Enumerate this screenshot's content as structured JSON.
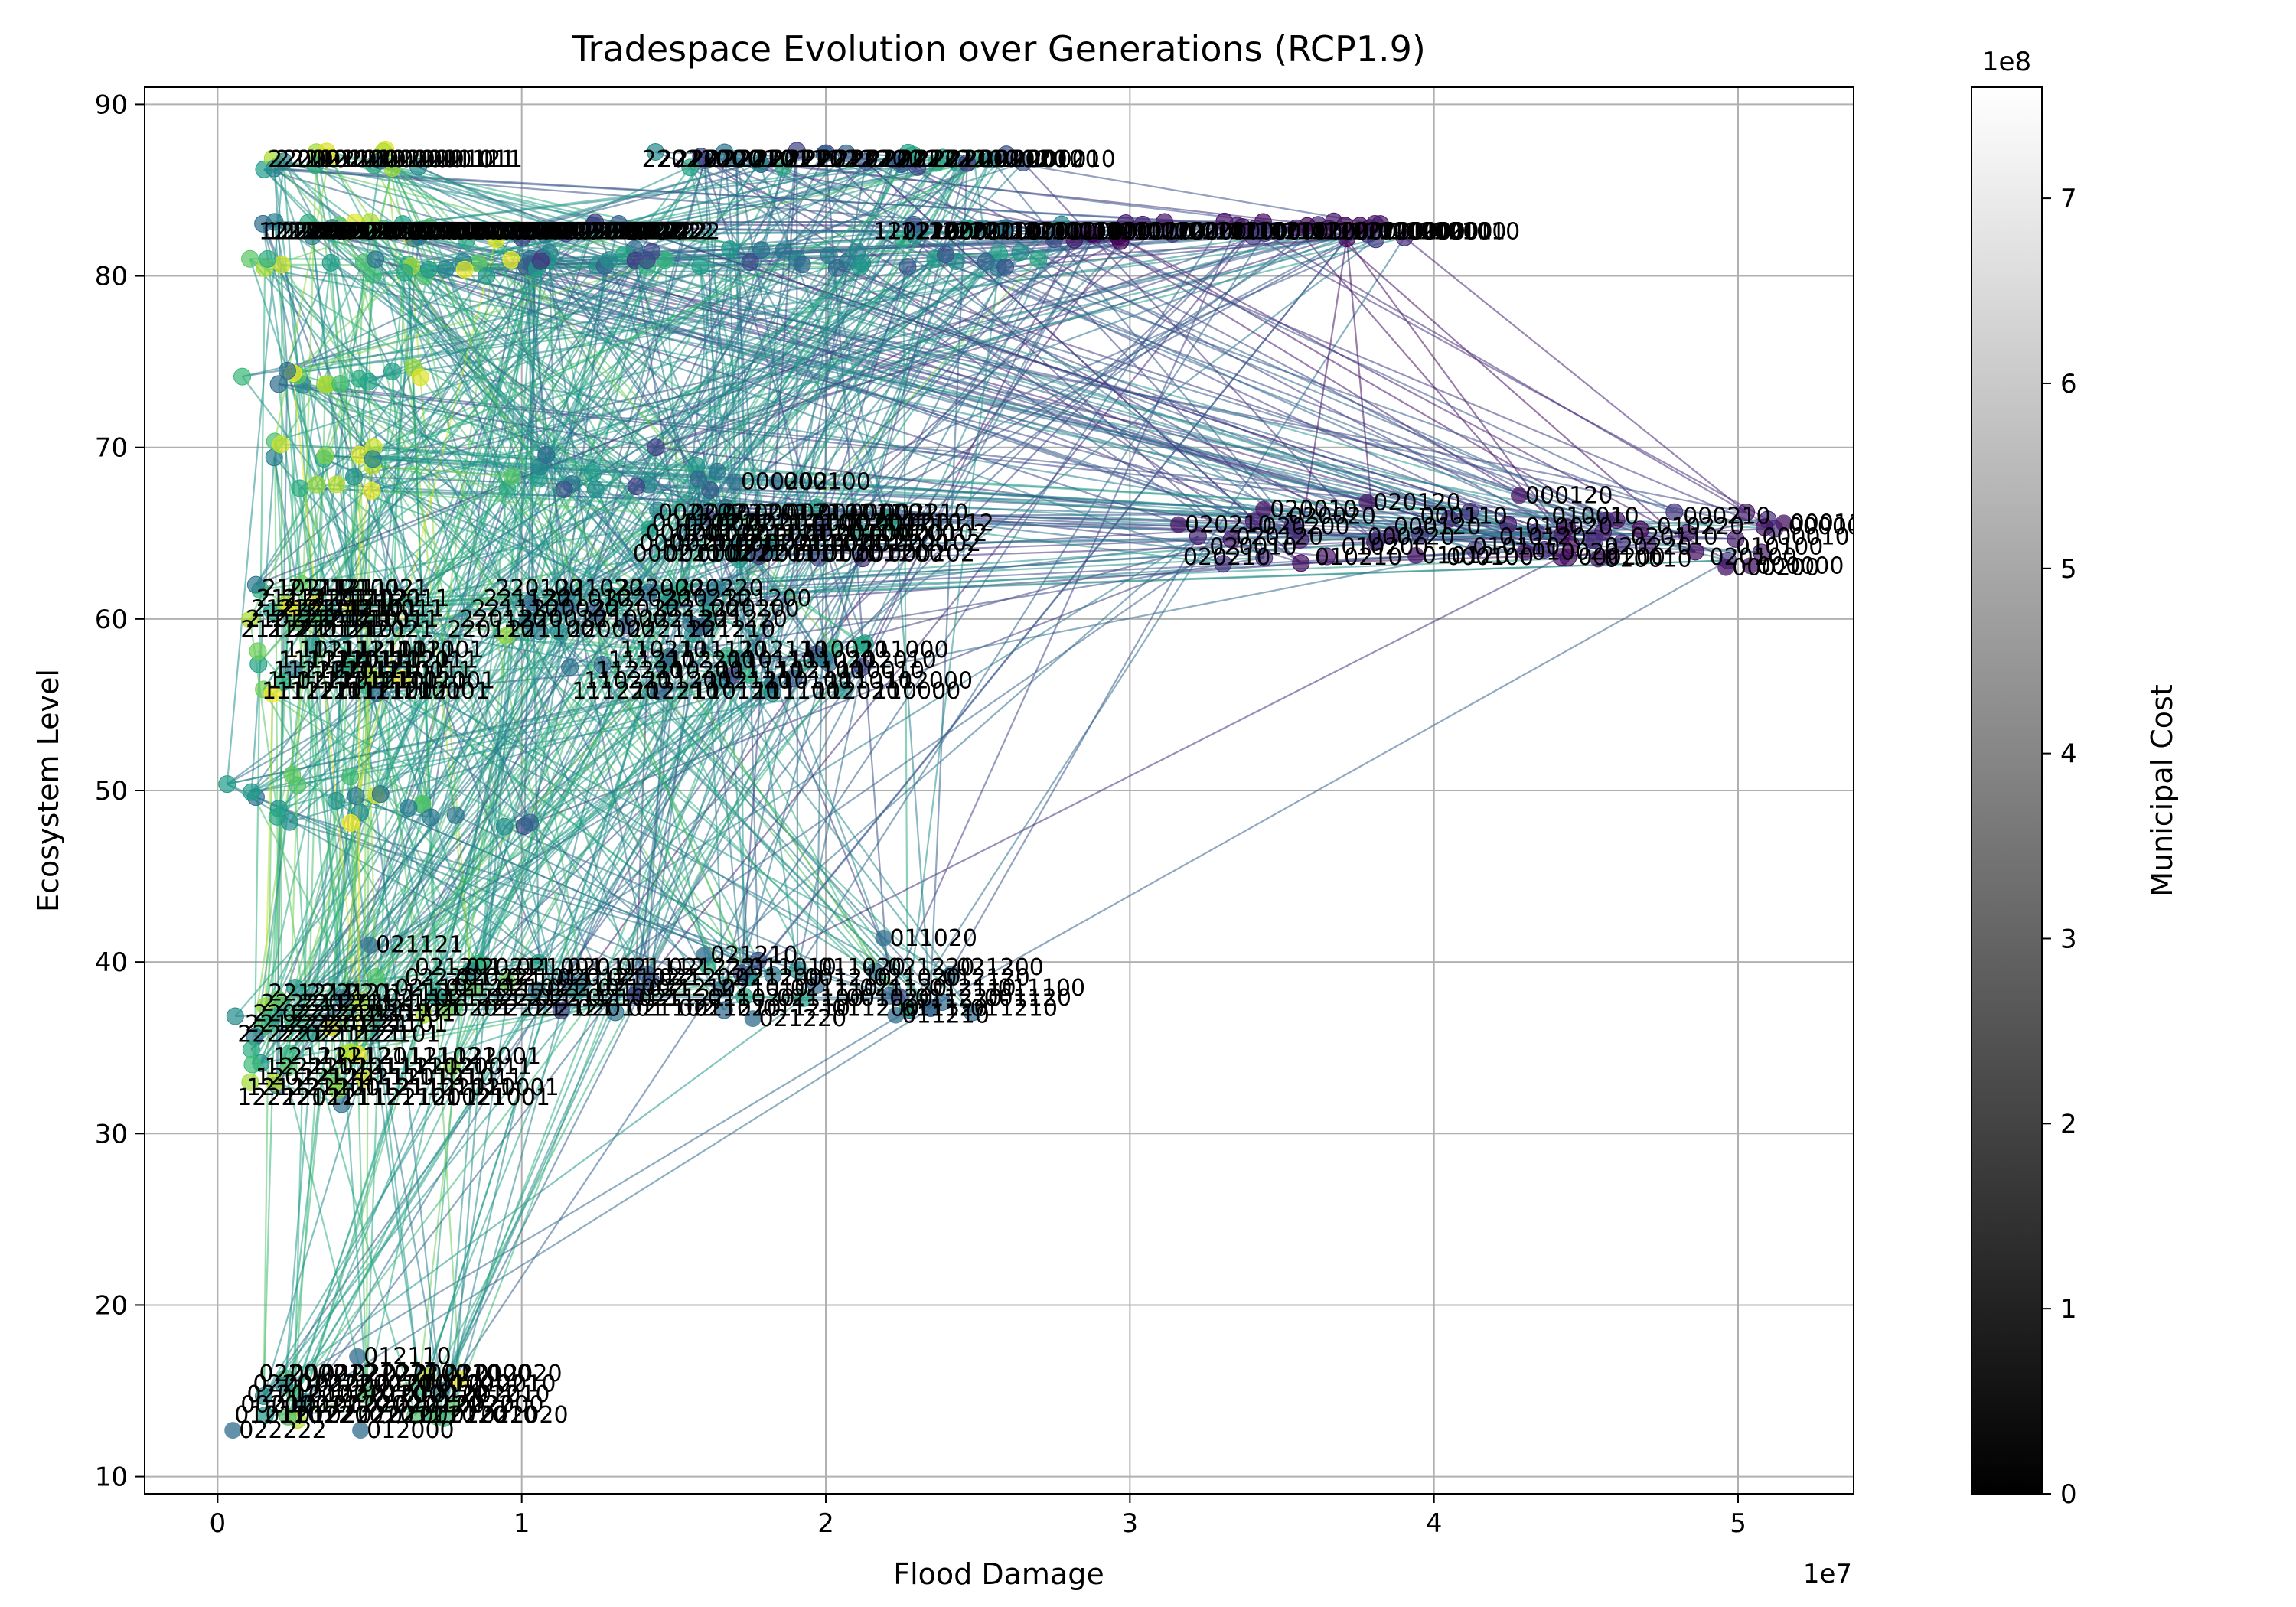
{
  "chart_data": {
    "type": "scatter",
    "title": "Tradespace Evolution over Generations (RCP1.9)",
    "xlabel": "Flood Damage",
    "ylabel": "Ecosystem Level",
    "x_offset_label": "1e7",
    "xlim": [
      -2400000,
      53800000
    ],
    "ylim": [
      9,
      91
    ],
    "x_ticks": [
      0,
      10000000,
      20000000,
      30000000,
      40000000,
      50000000
    ],
    "x_tick_labels": [
      "0",
      "1",
      "2",
      "3",
      "4",
      "5"
    ],
    "y_ticks": [
      10,
      20,
      30,
      40,
      50,
      60,
      70,
      80,
      90
    ],
    "y_tick_labels": [
      "10",
      "20",
      "30",
      "40",
      "50",
      "60",
      "70",
      "80",
      "90"
    ],
    "grid": true,
    "colormap": "viridis",
    "line_color_meaning": "generation",
    "colorbar": {
      "label": "Municipal Cost",
      "offset_label": "1e8",
      "cmap": "gray",
      "range": [
        0,
        760000000
      ],
      "ticks": [
        0,
        100000000,
        200000000,
        300000000,
        400000000,
        500000000,
        600000000,
        700000000
      ],
      "tick_labels": [
        "0",
        "1",
        "2",
        "3",
        "4",
        "5",
        "6",
        "7"
      ]
    },
    "clusters": [
      {
        "x": [
          1500000,
          7000000
        ],
        "y": [
          86.8,
          86.8
        ],
        "labels": [
          "220021",
          "221001",
          "221011",
          "221021",
          "220111",
          "220121",
          "221101",
          "221111",
          "221121",
          "220101",
          "220001",
          "221121",
          "220011",
          "221111",
          "221011",
          "221021",
          "221001",
          "220021",
          "220101",
          "220011",
          "221111",
          "221101",
          "221121",
          "221011"
        ]
      },
      {
        "x": [
          13800000,
          26500000
        ],
        "y": [
          86.8,
          86.8
        ],
        "labels": [
          "220210",
          "221200",
          "220200",
          "221201",
          "221210",
          "220201",
          "221211",
          "220211",
          "221202",
          "221212",
          "220212",
          "221220",
          "220220",
          "221221",
          "220221",
          "220222",
          "221222",
          "220110",
          "221110",
          "220120",
          "200112",
          "200110",
          "220010",
          "200120",
          "200010"
        ]
      },
      {
        "x": [
          1200000,
          13500000
        ],
        "y": [
          82.6,
          82.6
        ],
        "labels": [
          "121222",
          "122212",
          "121212",
          "122202",
          "121202",
          "122222",
          "120212",
          "120202",
          "122121",
          "121121",
          "122111",
          "121111",
          "120121",
          "122101",
          "121101",
          "120111",
          "120101",
          "122021",
          "121021",
          "120021",
          "122011",
          "121011",
          "120011",
          "122001",
          "121001",
          "120001",
          "120222",
          "121022",
          "122022",
          "120022",
          "121012",
          "122012",
          "120012",
          "121002",
          "122002",
          "120002",
          "122222",
          "120212",
          "121212",
          "122202",
          "121202",
          "120202",
          "122122",
          "120122",
          "121122",
          "122112",
          "121112",
          "120112",
          "122102",
          "121102",
          "120102",
          "122012",
          "121012",
          "120002",
          "122212",
          "121222",
          "122202",
          "121212",
          "120212",
          "122222"
        ]
      },
      {
        "x": [
          21400000,
          39800000
        ],
        "y": [
          82.6,
          82.6
        ],
        "labels": [
          "120210",
          "122200",
          "121200",
          "120200",
          "122210",
          "121210",
          "120110",
          "122100",
          "121100",
          "120100",
          "122110",
          "121110",
          "100110",
          "102100",
          "101100",
          "100100",
          "102110",
          "101110",
          "100210",
          "102200",
          "101200",
          "100200",
          "102210",
          "101210",
          "110100",
          "112100",
          "111100",
          "110110",
          "112110",
          "111110",
          "110200",
          "112200",
          "111200",
          "110210",
          "112210",
          "111210",
          "100010",
          "100000",
          "102000",
          "101000",
          "102010",
          "101010"
        ]
      },
      {
        "x": [
          1000000,
          9000000
        ],
        "y": [
          80.4,
          80.4
        ],
        "labels": []
      },
      {
        "x": [
          9000000,
          28500000
        ],
        "y": [
          81.0,
          81.0
        ],
        "labels": []
      },
      {
        "x": [
          700000,
          7200000
        ],
        "y": [
          74.2,
          74.2
        ],
        "labels": []
      },
      {
        "x": [
          1500000,
          5500000
        ],
        "y": [
          68.8,
          68.8
        ],
        "labels": []
      },
      {
        "x": [
          9500000,
          16500000
        ],
        "y": [
          68.8,
          68.8
        ],
        "labels": []
      },
      {
        "x": [
          13500000,
          22500000
        ],
        "y": [
          65.0,
          65.0
        ],
        "labels": [
          "000220",
          "000210",
          "000202",
          "001202",
          "002202",
          "001102",
          "002102",
          "000102",
          "001221",
          "002221",
          "000221",
          "001211",
          "002211",
          "000211",
          "001201",
          "002201",
          "000201",
          "001121",
          "002121",
          "000121",
          "001111",
          "002111",
          "000111",
          "001101",
          "002101",
          "000101",
          "001021",
          "002021",
          "000021",
          "001011",
          "002011",
          "000011",
          "001001",
          "002001",
          "000001",
          "001200",
          "002200",
          "000200",
          "001210",
          "002210",
          "000202",
          "002102",
          "000102",
          "000112"
        ]
      },
      {
        "x": [
          31600000,
          51500000
        ],
        "y": [
          64.8,
          64.8
        ],
        "labels": [
          "020210",
          "020010",
          "020120",
          "020200",
          "020020",
          "010210",
          "010200",
          "000220",
          "000120",
          "000110",
          "000100",
          "010110",
          "010120",
          "010020",
          "010010",
          "000200",
          "020220",
          "020110",
          "010220",
          "000210",
          "020100",
          "010100",
          "000010",
          "000000"
        ]
      },
      {
        "x": [
          600000,
          4600000
        ],
        "y": [
          60.6,
          60.6
        ],
        "labels": [
          "211221",
          "210221",
          "212221",
          "211211",
          "210211",
          "212211",
          "211201",
          "210201",
          "212201",
          "211121",
          "210121",
          "212121",
          "211111",
          "210111",
          "212111",
          "211101",
          "210101",
          "212101",
          "211021",
          "210021",
          "212021",
          "211011",
          "210011",
          "212011"
        ]
      },
      {
        "x": [
          7400000,
          16500000
        ],
        "y": [
          60.6,
          60.6
        ],
        "labels": [
          "220110",
          "220120",
          "221110",
          "221120",
          "220100",
          "221100",
          "220010",
          "220020",
          "221010",
          "221020",
          "220000",
          "221000",
          "222010",
          "222020",
          "222000",
          "222110",
          "222120",
          "222100",
          "220210",
          "220220",
          "221210",
          "221220",
          "220200",
          "221200"
        ]
      },
      {
        "x": [
          1300000,
          6100000
        ],
        "y": [
          57.0,
          57.0
        ],
        "labels": [
          "111221",
          "110221",
          "112221",
          "111211",
          "110211",
          "112211",
          "111201",
          "110201",
          "112201",
          "111121",
          "110121",
          "112121",
          "111111",
          "110111",
          "112111",
          "111101",
          "110101",
          "112101",
          "111021",
          "110021",
          "112021",
          "111011",
          "110011",
          "112011",
          "111001",
          "110001",
          "112001"
        ]
      },
      {
        "x": [
          11500000,
          21800000
        ],
        "y": [
          57.0,
          57.0
        ],
        "labels": [
          "111220",
          "110220",
          "112220",
          "111210",
          "110210",
          "112210",
          "111200",
          "110200",
          "112200",
          "111120",
          "110120",
          "112120",
          "111110",
          "110110",
          "112110",
          "111100",
          "110100",
          "112100",
          "111020",
          "110020",
          "112020",
          "111010",
          "110010",
          "112010",
          "111000",
          "110000",
          "112000"
        ]
      },
      {
        "x": [
          300000,
          10500000
        ],
        "y": [
          49.5,
          49.5
        ],
        "labels": []
      },
      {
        "x": [
          5000000,
          15000000
        ],
        "y": [
          38.5,
          38.5
        ],
        "labels": [
          "021121",
          "021111",
          "021101",
          "022201",
          "021201",
          "020201",
          "021221",
          "021211",
          "020221",
          "020211",
          "022221",
          "022211",
          "021021",
          "021011",
          "021001",
          "022121",
          "022111",
          "022101",
          "020121",
          "020111",
          "020101",
          "021012",
          "021002",
          "021022",
          "021112",
          "021102",
          "021122",
          "021212",
          "021202",
          "021222",
          "021102"
        ]
      },
      {
        "x": [
          15500000,
          25500000
        ],
        "y": [
          38.5,
          38.5
        ],
        "labels": [
          "021210",
          "011020",
          "021010",
          "021200",
          "011010",
          "011210",
          "021100",
          "021110",
          "001210",
          "011020",
          "011200",
          "001020",
          "021120",
          "021020",
          "021220",
          "011120",
          "011220",
          "012110",
          "012120",
          "021200",
          "011210",
          "001120",
          "011100"
        ]
      },
      {
        "x": [
          500000,
          4800000
        ],
        "y": [
          37.0,
          37.0
        ],
        "labels": [
          "222221",
          "221221",
          "220221",
          "222211",
          "221211",
          "220211",
          "222201",
          "221201",
          "220201",
          "222121",
          "221121",
          "220121",
          "222111",
          "221111",
          "220111",
          "222101",
          "221101",
          "220101"
        ]
      },
      {
        "x": [
          500000,
          8200000
        ],
        "y": [
          33.3,
          33.3
        ],
        "labels": [
          "122221",
          "121221",
          "120221",
          "122211",
          "121211",
          "120211",
          "122201",
          "121201",
          "120201",
          "122121",
          "121121",
          "120121",
          "122111",
          "121111",
          "120111",
          "122101",
          "121101",
          "120101",
          "122021",
          "121021",
          "120021",
          "122011",
          "121011",
          "120011",
          "122001",
          "121001",
          "120001"
        ]
      },
      {
        "x": [
          400000,
          8500000
        ],
        "y": [
          14.8,
          14.8
        ],
        "labels": [
          "012110",
          "002002",
          "022022",
          "022012",
          "022002",
          "012022",
          "012012",
          "012002",
          "002022",
          "002012",
          "012200",
          "012120",
          "012210",
          "022200",
          "022210",
          "022220",
          "002200",
          "002210",
          "002220",
          "022222",
          "022212",
          "022202",
          "012000",
          "012100",
          "022100",
          "022110",
          "022120",
          "012220",
          "002100",
          "002110",
          "002120",
          "012222",
          "012212",
          "012202",
          "022000",
          "022010",
          "002000",
          "002010",
          "012010",
          "012020",
          "022020"
        ]
      }
    ],
    "axis_label_points": [
      {
        "x": 5000000,
        "y": 41.0,
        "label": "021121"
      },
      {
        "x": 21900000,
        "y": 41.4,
        "label": "011020"
      },
      {
        "x": 16000000,
        "y": 40.4,
        "label": "021210"
      },
      {
        "x": 17600000,
        "y": 36.7,
        "label": "021220"
      },
      {
        "x": 22300000,
        "y": 36.9,
        "label": "011210"
      },
      {
        "x": 4600000,
        "y": 17.0,
        "label": "012110"
      },
      {
        "x": 500000,
        "y": 12.7,
        "label": "022222"
      },
      {
        "x": 4700000,
        "y": 12.7,
        "label": "012000"
      },
      {
        "x": 17000000,
        "y": 68.0,
        "label": "000202"
      },
      {
        "x": 18400000,
        "y": 68.0,
        "label": "000100"
      },
      {
        "x": 31600000,
        "y": 65.5,
        "label": "020210"
      },
      {
        "x": 34400000,
        "y": 66.4,
        "label": "020010"
      },
      {
        "x": 37800000,
        "y": 66.8,
        "label": "020120"
      },
      {
        "x": 42800000,
        "y": 67.2,
        "label": "000120"
      },
      {
        "x": 51500000,
        "y": 65.6,
        "label": "000110"
      },
      {
        "x": 50400000,
        "y": 63.1,
        "label": "000000"
      },
      {
        "x": 49600000,
        "y": 63.0,
        "label": "000200"
      },
      {
        "x": 45400000,
        "y": 63.5,
        "label": "010010"
      },
      {
        "x": 43000000,
        "y": 63.9,
        "label": "010020"
      },
      {
        "x": 39400000,
        "y": 63.7,
        "label": "010120"
      }
    ]
  }
}
